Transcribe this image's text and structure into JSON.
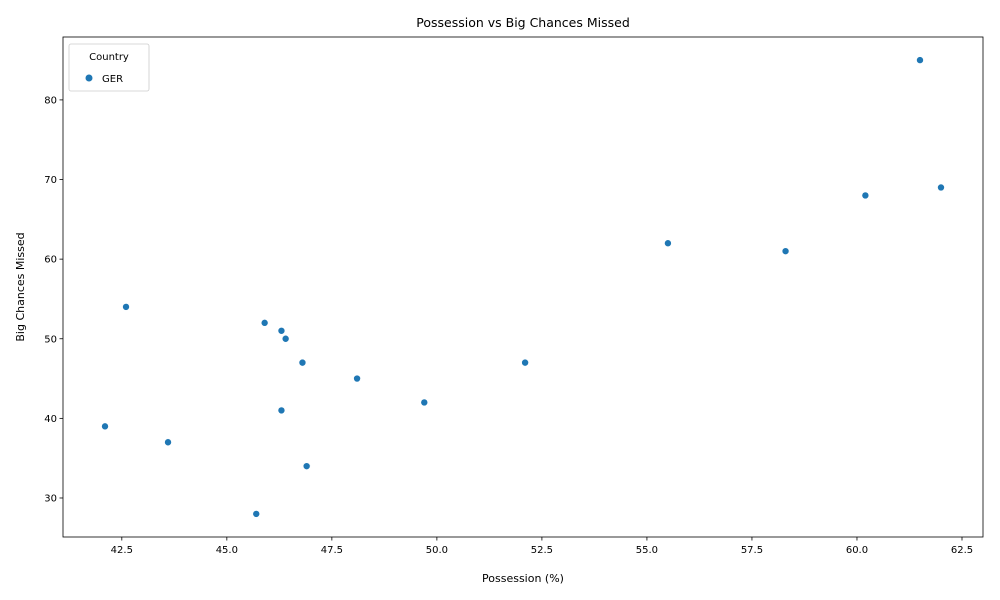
{
  "chart_data": {
    "type": "scatter",
    "title": "Possession vs Big Chances Missed",
    "xlabel": "Possession (%)",
    "ylabel": "Big Chances Missed",
    "xlim": [
      41.1,
      63.0
    ],
    "ylim": [
      25.1,
      87.9
    ],
    "xticks": [
      42.5,
      45.0,
      47.5,
      50.0,
      52.5,
      55.0,
      57.5,
      60.0,
      62.5
    ],
    "xtick_labels": [
      "42.5",
      "45.0",
      "47.5",
      "50.0",
      "52.5",
      "55.0",
      "57.5",
      "60.0",
      "62.5"
    ],
    "yticks": [
      30,
      40,
      50,
      60,
      70,
      80
    ],
    "ytick_labels": [
      "30",
      "40",
      "50",
      "60",
      "70",
      "80"
    ],
    "grid": false,
    "legend": {
      "title": "Country",
      "placement": "upper-left"
    },
    "series": [
      {
        "name": "GER",
        "color": "#1f77b4",
        "points": [
          {
            "x": 61.5,
            "y": 85
          },
          {
            "x": 62.0,
            "y": 69
          },
          {
            "x": 60.2,
            "y": 68
          },
          {
            "x": 55.5,
            "y": 62
          },
          {
            "x": 58.3,
            "y": 61
          },
          {
            "x": 42.6,
            "y": 54
          },
          {
            "x": 45.9,
            "y": 52
          },
          {
            "x": 46.3,
            "y": 51
          },
          {
            "x": 46.4,
            "y": 50
          },
          {
            "x": 46.8,
            "y": 47
          },
          {
            "x": 52.1,
            "y": 47
          },
          {
            "x": 48.1,
            "y": 45
          },
          {
            "x": 49.7,
            "y": 42
          },
          {
            "x": 46.3,
            "y": 41
          },
          {
            "x": 42.1,
            "y": 39
          },
          {
            "x": 43.6,
            "y": 37
          },
          {
            "x": 46.9,
            "y": 34
          },
          {
            "x": 45.7,
            "y": 28
          }
        ]
      }
    ]
  }
}
